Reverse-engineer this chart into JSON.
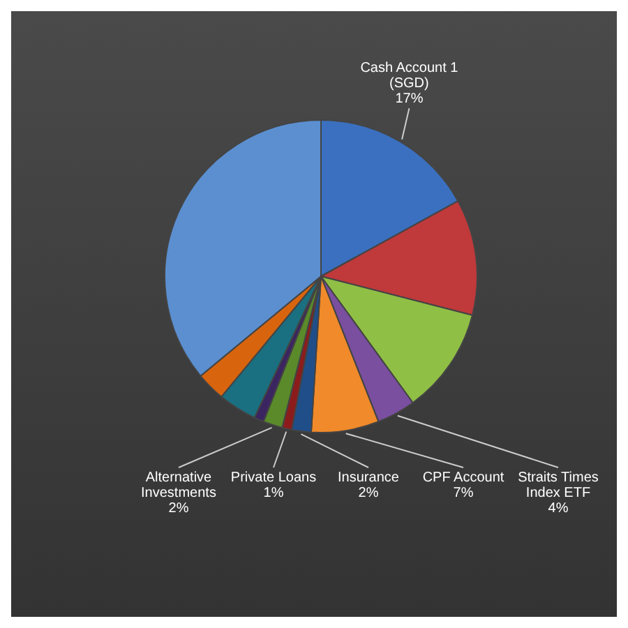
{
  "chart_data": {
    "type": "pie",
    "categories": [
      "Cash Account 1 (SGD)",
      null,
      null,
      "Straits Times Index ETF",
      "CPF Account",
      "Insurance",
      "Private Loans",
      "Alternative Investments",
      null,
      null,
      null,
      null
    ],
    "values": [
      17,
      12,
      11,
      4,
      7,
      2,
      1,
      2,
      1,
      4,
      3,
      36
    ],
    "value_labels": [
      "17%",
      null,
      null,
      "4%",
      "7%",
      "2%",
      "1%",
      "2%",
      null,
      null,
      null,
      null
    ],
    "colors": [
      "#3a70bf",
      "#c0393b",
      "#8fbf45",
      "#7a4fa0",
      "#f08a2a",
      "#1f4e89",
      "#8c1c1c",
      "#5a8a2a",
      "#3b2560",
      "#1a6f80",
      "#d8650e",
      "#5b8fd0"
    ],
    "legend": false
  }
}
